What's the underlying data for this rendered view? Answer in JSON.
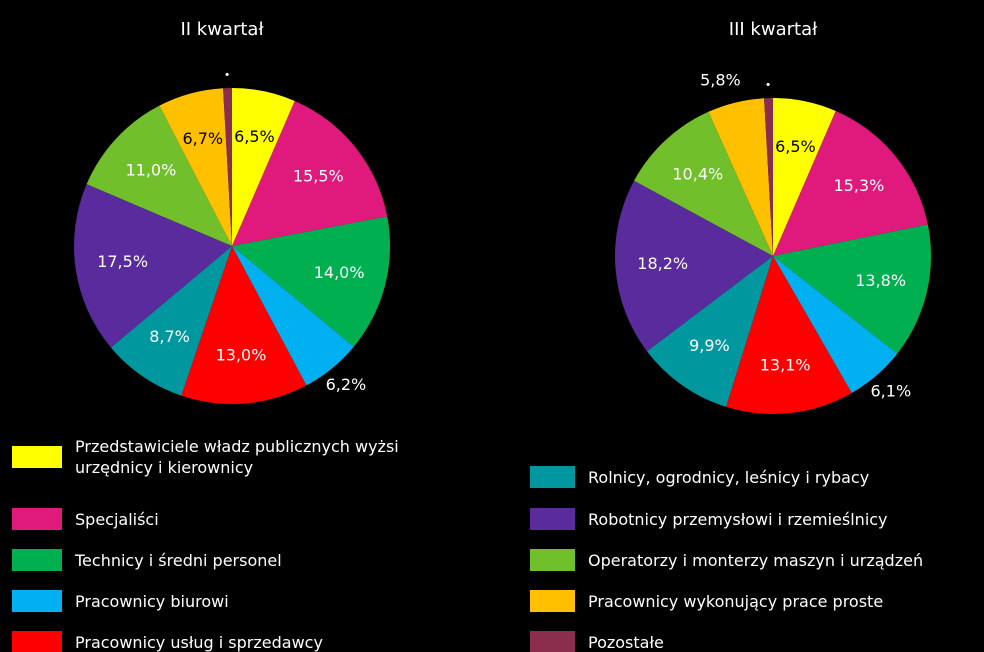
{
  "chart_data": [
    {
      "type": "pie",
      "title": "II kwartał",
      "categories": [
        "Przedstawiciele władz publicznych wyżsi urzędnicy i kierownicy",
        "Specjaliści",
        "Technicy i średni personel",
        "Pracownicy biurowi",
        "Pracownicy usług i sprzedawcy",
        "Rolnicy, ogrodnicy, leśnicy i rybacy",
        "Robotnicy przemysłowi i rzemieślnicy",
        "Operatorzy i monterzy maszyn i urządzeń",
        "Pracownicy wykonujący prace proste",
        "Pozostałe"
      ],
      "colors": [
        "#ffff00",
        "#e0197d",
        "#00b050",
        "#00b0f0",
        "#ff0000",
        "#00979f",
        "#5a2b9c",
        "#70bf2b",
        "#ffc000",
        "#8b2d4c"
      ],
      "values": [
        6.5,
        15.5,
        14.0,
        6.2,
        13.0,
        8.7,
        17.5,
        11.0,
        6.7,
        0.9
      ],
      "value_labels": [
        "6,5%",
        "15,5%",
        "14,0%",
        "6,2%",
        "13,0%",
        "8,7%",
        "17,5%",
        "11,0%",
        "6,7%",
        "•"
      ]
    },
    {
      "type": "pie",
      "title": "III kwartał",
      "categories": [
        "Przedstawiciele władz publicznych wyżsi urzędnicy i kierownicy",
        "Specjaliści",
        "Technicy i średni personel",
        "Pracownicy biurowi",
        "Pracownicy usług i sprzedawcy",
        "Rolnicy, ogrodnicy, leśnicy i rybacy",
        "Robotnicy przemysłowi i rzemieślnicy",
        "Operatorzy i monterzy maszyn i urządzeń",
        "Pracownicy wykonujący prace proste",
        "Pozostałe"
      ],
      "colors": [
        "#ffff00",
        "#e0197d",
        "#00b050",
        "#00b0f0",
        "#ff0000",
        "#00979f",
        "#5a2b9c",
        "#70bf2b",
        "#ffc000",
        "#8b2d4c"
      ],
      "values": [
        6.5,
        15.3,
        13.8,
        6.1,
        13.1,
        9.9,
        18.2,
        10.4,
        5.8,
        0.9
      ],
      "value_labels": [
        "6,5%",
        "15,3%",
        "13,8%",
        "6,1%",
        "13,1%",
        "9,9%",
        "18,2%",
        "10,4%",
        "5,8%",
        "•"
      ]
    }
  ]
}
